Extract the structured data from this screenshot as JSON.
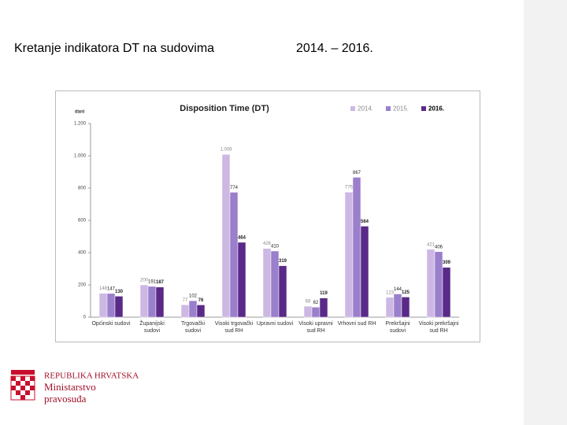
{
  "header": {
    "title": "Kretanje indikatora DT na sudovima",
    "period": "2014. – 2016."
  },
  "chart_data": {
    "type": "bar",
    "title": "Disposition Time (DT)",
    "y_label": "dani",
    "categories": [
      "Općinski sudovi",
      "Županijski sudovi",
      "Trgovački sudovi",
      "Visoki trgovački sud RH",
      "Upravni sudovi",
      "Visoki upravni sud RH",
      "Vrhovni sud RH",
      "Prekršajni sudovi",
      "Visoki prekršajni sud RH"
    ],
    "series": [
      {
        "name": "2014.",
        "color": "#cdb8e4",
        "values": [
          148,
          200,
          77,
          1009,
          426,
          68,
          775,
          123,
          421
        ],
        "value_labels": [
          "148",
          "200",
          "77",
          "1.009",
          "426",
          "68",
          "775",
          "123",
          "421"
        ]
      },
      {
        "name": "2015.",
        "color": "#9a7fcc",
        "values": [
          147,
          191,
          102,
          774,
          410,
          62,
          867,
          144,
          406
        ],
        "value_labels": [
          "147",
          "191",
          "102",
          "774",
          "410",
          "62",
          "867",
          "144",
          "406"
        ]
      },
      {
        "name": "2016.",
        "color": "#5a2a88",
        "values": [
          130,
          187,
          76,
          464,
          319,
          119,
          564,
          125,
          309
        ],
        "value_labels": [
          "130",
          "187",
          "76",
          "464",
          "319",
          "119",
          "564",
          "125",
          "309"
        ]
      }
    ],
    "ylim": [
      0,
      1200
    ],
    "yticks": [
      0,
      {
        "value": 200,
        "label": "200"
      },
      400,
      600,
      800,
      {
        "value": 1000,
        "label": "1.000"
      },
      {
        "value": 1200,
        "label": "1.200"
      }
    ],
    "legend": "top-right"
  },
  "logo": {
    "line1": "REPUBLIKA HRVATSKA",
    "line2": "Ministarstvo",
    "line3": "pravosuđa"
  }
}
